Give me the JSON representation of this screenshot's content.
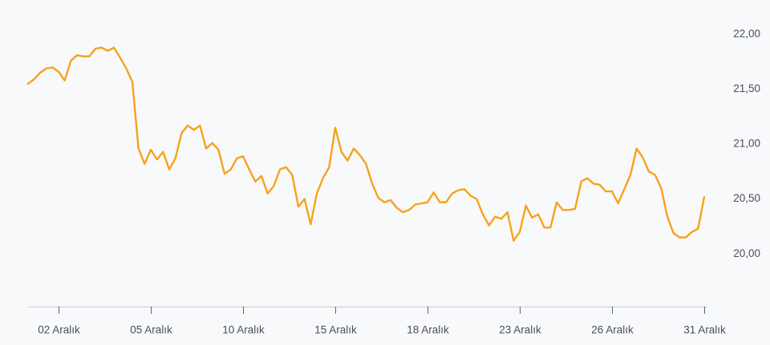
{
  "chart_data": {
    "type": "line",
    "categories": [
      null,
      null,
      null,
      null,
      null,
      "02 Aralık",
      null,
      null,
      null,
      null,
      null,
      null,
      null,
      null,
      null,
      null,
      null,
      null,
      null,
      null,
      "05 Aralık",
      null,
      null,
      null,
      null,
      null,
      null,
      null,
      null,
      null,
      null,
      null,
      null,
      null,
      null,
      "10 Aralık",
      null,
      null,
      null,
      null,
      null,
      null,
      null,
      null,
      null,
      null,
      null,
      null,
      null,
      null,
      "15 Aralık",
      null,
      null,
      null,
      null,
      null,
      null,
      null,
      null,
      null,
      null,
      null,
      null,
      null,
      null,
      "18 Aralık",
      null,
      null,
      null,
      null,
      null,
      null,
      null,
      null,
      null,
      null,
      null,
      null,
      null,
      null,
      "23 Aralık",
      null,
      null,
      null,
      null,
      null,
      null,
      null,
      null,
      null,
      null,
      null,
      null,
      null,
      null,
      "26 Aralık",
      null,
      null,
      null,
      null,
      null,
      null,
      null,
      null,
      null,
      null,
      null,
      null,
      null,
      null,
      "31 Aralık"
    ],
    "series": [
      {
        "color": "#f7a21b",
        "values": [
          21.55,
          21.59,
          21.65,
          21.69,
          21.7,
          21.66,
          21.58,
          21.76,
          21.81,
          21.8,
          21.8,
          21.87,
          21.88,
          21.85,
          21.88,
          21.79,
          21.69,
          21.57,
          20.96,
          20.82,
          20.95,
          20.86,
          20.93,
          20.77,
          20.87,
          21.1,
          21.17,
          21.13,
          21.17,
          20.96,
          21.01,
          20.95,
          20.73,
          20.77,
          20.87,
          20.89,
          20.77,
          20.66,
          20.71,
          20.55,
          20.62,
          20.77,
          20.79,
          20.72,
          20.43,
          20.5,
          20.27,
          20.55,
          20.69,
          20.79,
          21.15,
          20.93,
          20.85,
          20.96,
          20.9,
          20.82,
          20.64,
          20.51,
          20.47,
          20.49,
          20.42,
          20.38,
          20.4,
          20.45,
          20.46,
          20.47,
          20.56,
          20.47,
          20.47,
          20.55,
          20.58,
          20.59,
          20.53,
          20.5,
          20.36,
          20.26,
          20.34,
          20.32,
          20.38,
          20.12,
          20.2,
          20.44,
          20.33,
          20.36,
          20.24,
          20.24,
          20.47,
          20.4,
          20.4,
          20.41,
          20.66,
          20.69,
          20.64,
          20.63,
          20.57,
          20.57,
          20.46,
          20.59,
          20.72,
          20.96,
          20.88,
          20.75,
          20.72,
          20.6,
          20.34,
          20.19,
          20.15,
          20.15,
          20.2,
          20.23,
          20.52
        ]
      }
    ],
    "ylim": [
      19.52,
      22.31
    ],
    "yticks": [
      {
        "value": 20,
        "label": "20,00"
      },
      {
        "value": 20.5,
        "label": "20,50"
      },
      {
        "value": 21,
        "label": "21,00"
      },
      {
        "value": 21.5,
        "label": "21,50"
      },
      {
        "value": 22,
        "label": "22,00"
      }
    ],
    "grid": false
  }
}
